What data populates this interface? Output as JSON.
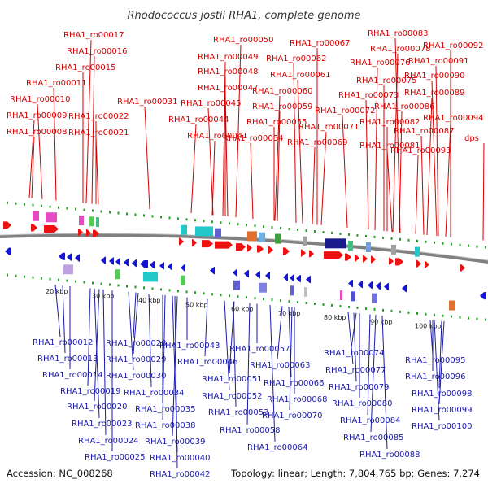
{
  "title": "Rhodococcus jostii RHA1, complete genome",
  "footer": {
    "accession": "Accession: NC_008268",
    "summary": "Topology: linear; Length: 7,804,765 bp; Genes: 7,274"
  },
  "colors": {
    "top_labels": "#d40000",
    "bottom_labels": "#1a1aaa",
    "backbone": "#777777",
    "ticks": "#22a022"
  },
  "scale_ticks": [
    "20 kbp",
    "30 kbp",
    "40 kbp",
    "50 kbp",
    "60 kbp",
    "70 kbp",
    "80 kbp",
    "90 kbp",
    "100 kbp"
  ],
  "top_labels": [
    "RHA1_ro00017",
    "RHA1_ro00016",
    "RHA1_ro00015",
    "RHA1_ro00011",
    "RHA1_ro00010",
    "RHA1_ro00009",
    "RHA1_ro00008",
    "RHA1_ro00022",
    "RHA1_ro00021",
    "RHA1_ro00031",
    "RHA1_ro00050",
    "RHA1_ro00049",
    "RHA1_ro00048",
    "RHA1_ro00047",
    "RHA1_ro00045",
    "RHA1_ro00044",
    "RHA1_ro00041",
    "RHA1_ro00067",
    "RHA1_ro00062",
    "RHA1_ro00061",
    "RHA1_ro00060",
    "RHA1_ro00059",
    "RHA1_ro00055",
    "RHA1_ro00054",
    "RHA1_ro00083",
    "RHA1_ro00078",
    "RHA1_ro00076",
    "RHA1_ro00075",
    "RHA1_ro00073",
    "RHA1_ro00072",
    "RHA1_ro00071",
    "RHA1_ro00069",
    "RHA1_ro00092",
    "RHA1_ro00091",
    "RHA1_ro00090",
    "RHA1_ro00089",
    "RHA1_ro00086",
    "RHA1_ro00082",
    "RHA1_ro00087",
    "RHA1_ro00081",
    "RHA1_ro00094",
    "RHA1_ro00093",
    "dps"
  ],
  "bottom_labels": [
    "RHA1_ro00012",
    "RHA1_ro00013",
    "RHA1_ro00014",
    "RHA1_ro00019",
    "RHA1_ro00020",
    "RHA1_ro00023",
    "RHA1_ro00024",
    "RHA1_ro00025",
    "RHA1_ro00028",
    "RHA1_ro00029",
    "RHA1_ro00030",
    "RHA1_ro00034",
    "RHA1_ro00035",
    "RHA1_ro00038",
    "RHA1_ro00039",
    "RHA1_ro00040",
    "RHA1_ro00042",
    "RHA1_ro00043",
    "RHA1_ro00046",
    "RHA1_ro00051",
    "RHA1_ro00052",
    "RHA1_ro00053",
    "RHA1_ro00057",
    "RHA1_ro00058",
    "RHA1_ro00063",
    "RHA1_ro00064",
    "RHA1_ro00066",
    "RHA1_ro00068",
    "RHA1_ro00070",
    "RHA1_ro00074",
    "RHA1_ro00077",
    "RHA1_ro00079",
    "RHA1_ro00080",
    "RHA1_ro00084",
    "RHA1_ro00085",
    "RHA1_ro00088",
    "RHA1_ro00095",
    "RHA1_ro00096",
    "RHA1_ro00098",
    "RHA1_ro00099",
    "RHA1_ro00100"
  ]
}
